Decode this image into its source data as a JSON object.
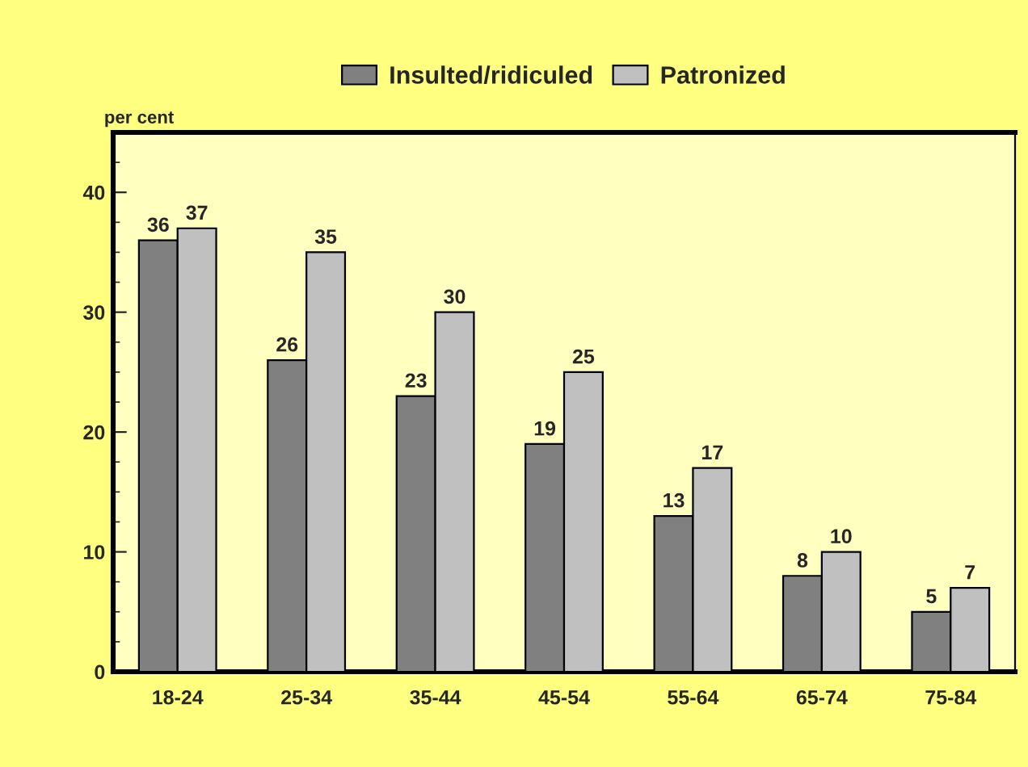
{
  "chart_data": {
    "type": "bar",
    "ylabel": "per cent",
    "categories": [
      "18-24",
      "25-34",
      "35-44",
      "45-54",
      "55-64",
      "65-74",
      "75-84"
    ],
    "series": [
      {
        "name": "Insulted/ridiculed",
        "color": "#808080",
        "values": [
          36,
          26,
          23,
          19,
          13,
          8,
          5
        ]
      },
      {
        "name": "Patronized",
        "color": "#c0c0c0",
        "values": [
          37,
          35,
          30,
          25,
          17,
          10,
          7
        ]
      }
    ],
    "ylim": [
      0,
      45
    ],
    "yticks": [
      0,
      10,
      20,
      30,
      40
    ],
    "data_labels": true,
    "grid": false,
    "legend": "top"
  }
}
